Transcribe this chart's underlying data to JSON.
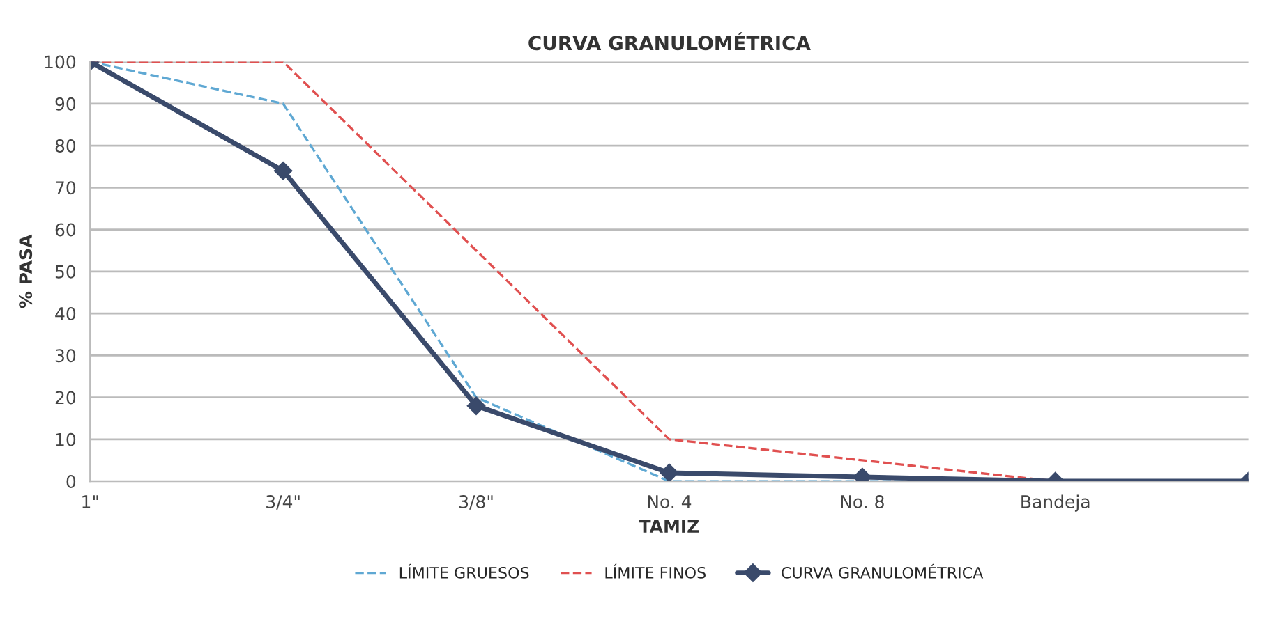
{
  "chart_data": {
    "type": "line",
    "title": "CURVA GRANULOMÉTRICA",
    "xlabel": "TAMIZ",
    "ylabel": "% PASA",
    "categories": [
      "1\"",
      "3/4\"",
      "3/8\"",
      "No. 4",
      "No. 8",
      "Bandeja",
      null
    ],
    "ylim": [
      0,
      100
    ],
    "yticks": [
      0,
      10,
      20,
      30,
      40,
      50,
      60,
      70,
      80,
      90,
      100
    ],
    "grid": "y",
    "legend": "bottom",
    "series": [
      {
        "name": "LÍMITE GRUESOS",
        "color": "#5fa8d3",
        "line_style": "dashed",
        "marker": "none",
        "values": [
          100,
          90,
          20,
          0,
          0,
          0,
          null
        ]
      },
      {
        "name": "LÍMITE FINOS",
        "color": "#e05050",
        "line_style": "dashed",
        "marker": "none",
        "values": [
          100,
          100,
          55,
          10,
          5,
          0,
          null
        ]
      },
      {
        "name": "CURVA GRANULOMÉTRICA",
        "color": "#3a4a6b",
        "line_style": "solid",
        "marker": "diamond",
        "values": [
          100,
          74,
          18,
          2,
          1,
          0,
          0
        ]
      }
    ]
  }
}
